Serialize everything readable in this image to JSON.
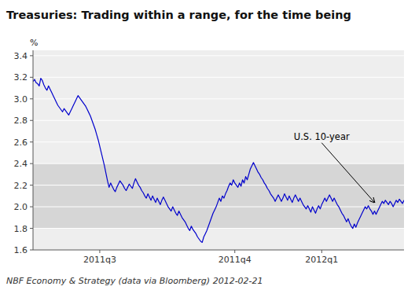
{
  "chart_data": {
    "type": "line",
    "title": "Treasuries: Trading within a range, for the time being",
    "y_label": "%",
    "footer": "NBF Economy & Strategy (data via Bloomberg) 2012-02-21",
    "color": "#0000cc",
    "grid": true,
    "ylim": [
      1.6,
      3.45
    ],
    "yticks": [
      1.6,
      1.8,
      {
        "value": 2.0,
        "label": "2.0"
      },
      2.2,
      2.4,
      2.6,
      2.8,
      {
        "value": 3.0,
        "label": "3.0"
      },
      3.2,
      3.4
    ],
    "band": [
      1.8,
      2.4
    ],
    "annotations": [
      {
        "text": "U.S. 10-year",
        "index": 220,
        "value": 2.04,
        "text_index": 168,
        "text_value": 2.6
      }
    ],
    "categories": [
      null,
      null,
      null,
      null,
      null,
      null,
      null,
      null,
      null,
      null,
      null,
      null,
      null,
      null,
      null,
      null,
      null,
      null,
      null,
      null,
      null,
      null,
      null,
      null,
      null,
      null,
      null,
      null,
      null,
      null,
      null,
      null,
      null,
      null,
      null,
      null,
      null,
      null,
      null,
      null,
      null,
      null,
      null,
      "2011q3",
      null,
      null,
      null,
      null,
      null,
      null,
      null,
      null,
      null,
      null,
      null,
      null,
      null,
      null,
      null,
      null,
      null,
      null,
      null,
      null,
      null,
      null,
      null,
      null,
      null,
      null,
      null,
      null,
      null,
      null,
      null,
      null,
      null,
      null,
      null,
      null,
      null,
      null,
      null,
      null,
      null,
      null,
      null,
      null,
      null,
      null,
      null,
      null,
      null,
      null,
      null,
      null,
      null,
      null,
      null,
      null,
      null,
      null,
      null,
      null,
      null,
      null,
      null,
      null,
      null,
      null,
      null,
      null,
      null,
      null,
      null,
      null,
      null,
      null,
      null,
      null,
      null,
      null,
      null,
      null,
      null,
      null,
      null,
      null,
      null,
      null,
      "2011q4",
      null,
      null,
      null,
      null,
      null,
      null,
      null,
      null,
      null,
      null,
      null,
      null,
      null,
      null,
      null,
      null,
      null,
      null,
      null,
      null,
      null,
      null,
      null,
      null,
      null,
      null,
      null,
      null,
      null,
      null,
      null,
      null,
      null,
      null,
      null,
      null,
      null,
      null,
      null,
      null,
      null,
      null,
      null,
      null,
      null,
      null,
      null,
      null,
      null,
      null,
      null,
      null,
      null,
      null,
      null,
      "2012q1",
      null,
      null,
      null,
      null,
      null,
      null,
      null,
      null,
      null,
      null,
      null,
      null,
      null,
      null,
      null,
      null,
      null,
      null,
      null,
      null,
      null,
      null,
      null,
      null,
      null,
      null,
      null,
      null,
      null,
      null,
      null,
      null,
      null,
      null,
      null,
      null,
      null,
      null,
      null,
      null,
      null,
      null,
      null,
      null,
      null,
      null,
      null,
      null,
      null,
      null,
      null,
      null,
      null
    ],
    "values": [
      3.16,
      3.18,
      3.15,
      3.14,
      3.12,
      3.19,
      3.17,
      3.13,
      3.1,
      3.08,
      3.12,
      3.09,
      3.06,
      3.03,
      3.0,
      2.97,
      2.94,
      2.92,
      2.9,
      2.88,
      2.91,
      2.89,
      2.87,
      2.85,
      2.88,
      2.91,
      2.94,
      2.97,
      3.0,
      3.03,
      3.01,
      2.99,
      2.97,
      2.95,
      2.93,
      2.9,
      2.87,
      2.84,
      2.8,
      2.76,
      2.72,
      2.67,
      2.62,
      2.56,
      2.5,
      2.44,
      2.38,
      2.31,
      2.24,
      2.18,
      2.22,
      2.19,
      2.16,
      2.14,
      2.18,
      2.21,
      2.24,
      2.22,
      2.2,
      2.17,
      2.15,
      2.18,
      2.21,
      2.19,
      2.17,
      2.22,
      2.26,
      2.23,
      2.2,
      2.18,
      2.15,
      2.13,
      2.1,
      2.08,
      2.12,
      2.09,
      2.06,
      2.1,
      2.07,
      2.04,
      2.08,
      2.05,
      2.02,
      2.06,
      2.09,
      2.06,
      2.03,
      2.0,
      1.98,
      1.96,
      2.0,
      1.97,
      1.94,
      1.92,
      1.96,
      1.93,
      1.9,
      1.88,
      1.86,
      1.83,
      1.8,
      1.78,
      1.82,
      1.79,
      1.77,
      1.75,
      1.72,
      1.7,
      1.68,
      1.67,
      1.72,
      1.75,
      1.78,
      1.82,
      1.86,
      1.9,
      1.94,
      1.97,
      2.0,
      2.04,
      2.08,
      2.05,
      2.1,
      2.08,
      2.12,
      2.15,
      2.19,
      2.22,
      2.2,
      2.25,
      2.22,
      2.2,
      2.18,
      2.22,
      2.19,
      2.25,
      2.22,
      2.28,
      2.25,
      2.3,
      2.35,
      2.38,
      2.41,
      2.38,
      2.35,
      2.32,
      2.3,
      2.27,
      2.25,
      2.22,
      2.2,
      2.17,
      2.15,
      2.12,
      2.1,
      2.08,
      2.05,
      2.08,
      2.11,
      2.08,
      2.05,
      2.08,
      2.12,
      2.09,
      2.06,
      2.1,
      2.07,
      2.04,
      2.08,
      2.11,
      2.08,
      2.05,
      2.08,
      2.05,
      2.02,
      2.0,
      1.98,
      2.01,
      1.98,
      1.95,
      2.0,
      1.97,
      1.94,
      1.98,
      2.01,
      1.98,
      2.02,
      2.05,
      2.08,
      2.05,
      2.08,
      2.11,
      2.08,
      2.05,
      2.08,
      2.05,
      2.02,
      2.0,
      1.97,
      1.94,
      1.92,
      1.89,
      1.86,
      1.89,
      1.85,
      1.82,
      1.8,
      1.84,
      1.81,
      1.85,
      1.88,
      1.91,
      1.94,
      1.97,
      2.0,
      1.98,
      2.01,
      1.98,
      1.96,
      1.93,
      1.96,
      1.93,
      1.96,
      1.99,
      2.02,
      2.05,
      2.03,
      2.06,
      2.04,
      2.02,
      2.05,
      2.03,
      2.0,
      2.03,
      2.06,
      2.04,
      2.07,
      2.05,
      2.03,
      2.06
    ]
  }
}
